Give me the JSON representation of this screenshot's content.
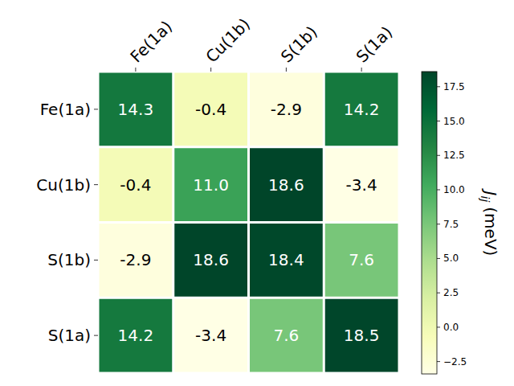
{
  "chart_data": {
    "type": "heatmap",
    "x_categories": [
      "Fe(1a)",
      "Cu(1b)",
      "S(1b)",
      "S(1a)"
    ],
    "y_categories": [
      "Fe(1a)",
      "Cu(1b)",
      "S(1b)",
      "S(1a)"
    ],
    "values": [
      [
        14.3,
        -0.4,
        -2.9,
        14.2
      ],
      [
        -0.4,
        11.0,
        18.6,
        -3.4
      ],
      [
        -2.9,
        18.6,
        18.4,
        7.6
      ],
      [
        14.2,
        -3.4,
        7.6,
        18.5
      ]
    ],
    "value_labels": [
      [
        "14.3",
        "-0.4",
        "-2.9",
        "14.2"
      ],
      [
        "-0.4",
        "11.0",
        "18.6",
        "-3.4"
      ],
      [
        "-2.9",
        "18.6",
        "18.4",
        "7.6"
      ],
      [
        "14.2",
        "-3.4",
        "7.6",
        "18.5"
      ]
    ],
    "data_labels": true,
    "colorbar_range": [
      -3.4,
      18.6
    ],
    "colorbar_ticks": [
      {
        "value": -2.5,
        "label": "−2.5"
      },
      {
        "value": 0,
        "label": "0.0"
      },
      2.5,
      {
        "value": 5,
        "label": "5.0"
      },
      7.5,
      {
        "value": 10,
        "label": "10.0"
      },
      12.5,
      {
        "value": 15,
        "label": "15.0"
      },
      17.5
    ],
    "colorbar_label": {
      "symbol": "J",
      "subscript": "ij",
      "unit": "(meV)"
    }
  }
}
